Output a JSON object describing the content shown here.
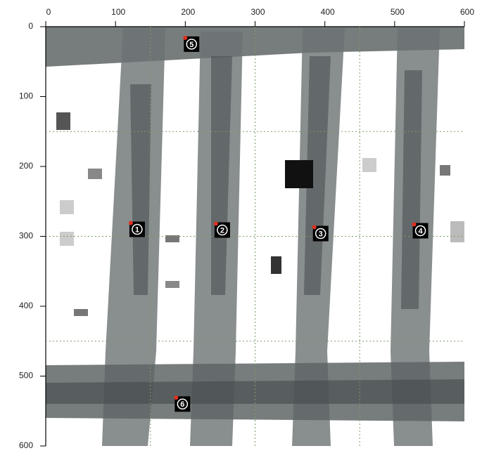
{
  "chart_data": {
    "type": "image",
    "xlim": [
      0,
      600
    ],
    "ylim": [
      0,
      600
    ],
    "xticks": [
      0,
      100,
      200,
      300,
      400,
      500,
      600
    ],
    "yticks": [
      0,
      100,
      200,
      300,
      400,
      500,
      600
    ],
    "gridlines": [
      150,
      300,
      450
    ],
    "markers": [
      {
        "label": "1",
        "x": 131,
        "y": 290
      },
      {
        "label": "2",
        "x": 253,
        "y": 291
      },
      {
        "label": "3",
        "x": 394,
        "y": 296
      },
      {
        "label": "4",
        "x": 537,
        "y": 292
      },
      {
        "label": "5",
        "x": 209,
        "y": 25
      },
      {
        "label": "6",
        "x": 196,
        "y": 540
      }
    ]
  }
}
